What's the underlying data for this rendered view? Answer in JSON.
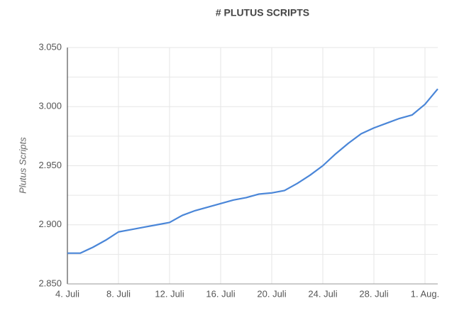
{
  "chart_data": {
    "type": "line",
    "title": "# PLUTUS SCRIPTS",
    "y_label": "Plutus Scripts",
    "categories": [
      "4. Juli",
      null,
      null,
      null,
      "8. Juli",
      null,
      null,
      null,
      "12. Juli",
      null,
      null,
      null,
      "16. Juli",
      null,
      null,
      null,
      "20. Juli",
      null,
      null,
      null,
      "24. Juli",
      null,
      null,
      null,
      "28. Juli",
      null,
      null,
      null,
      "1. Aug.",
      null
    ],
    "series": [
      {
        "name": "Plutus Scripts",
        "color": "#4a86d8",
        "values": [
          2876,
          2876,
          2881,
          2887,
          2894,
          2896,
          2898,
          2900,
          2902,
          2908,
          2912,
          2915,
          2918,
          2921,
          2923,
          2926,
          2927,
          2929,
          2935,
          2942,
          2950,
          2960,
          2969,
          2977,
          2982,
          2986,
          2990,
          2993,
          3002,
          3015
        ]
      }
    ],
    "ylim": [
      2850,
      3050
    ],
    "yticks": [
      {
        "value": 2850,
        "label": "2.850"
      },
      {
        "value": 2900,
        "label": "2.900"
      },
      {
        "value": 2950,
        "label": "2.950"
      },
      {
        "value": 3000,
        "label": "3.000"
      },
      {
        "value": 3050,
        "label": "3.050"
      }
    ],
    "minor_yticks": [
      2875,
      2925,
      2975,
      3025
    ],
    "grid": true
  }
}
